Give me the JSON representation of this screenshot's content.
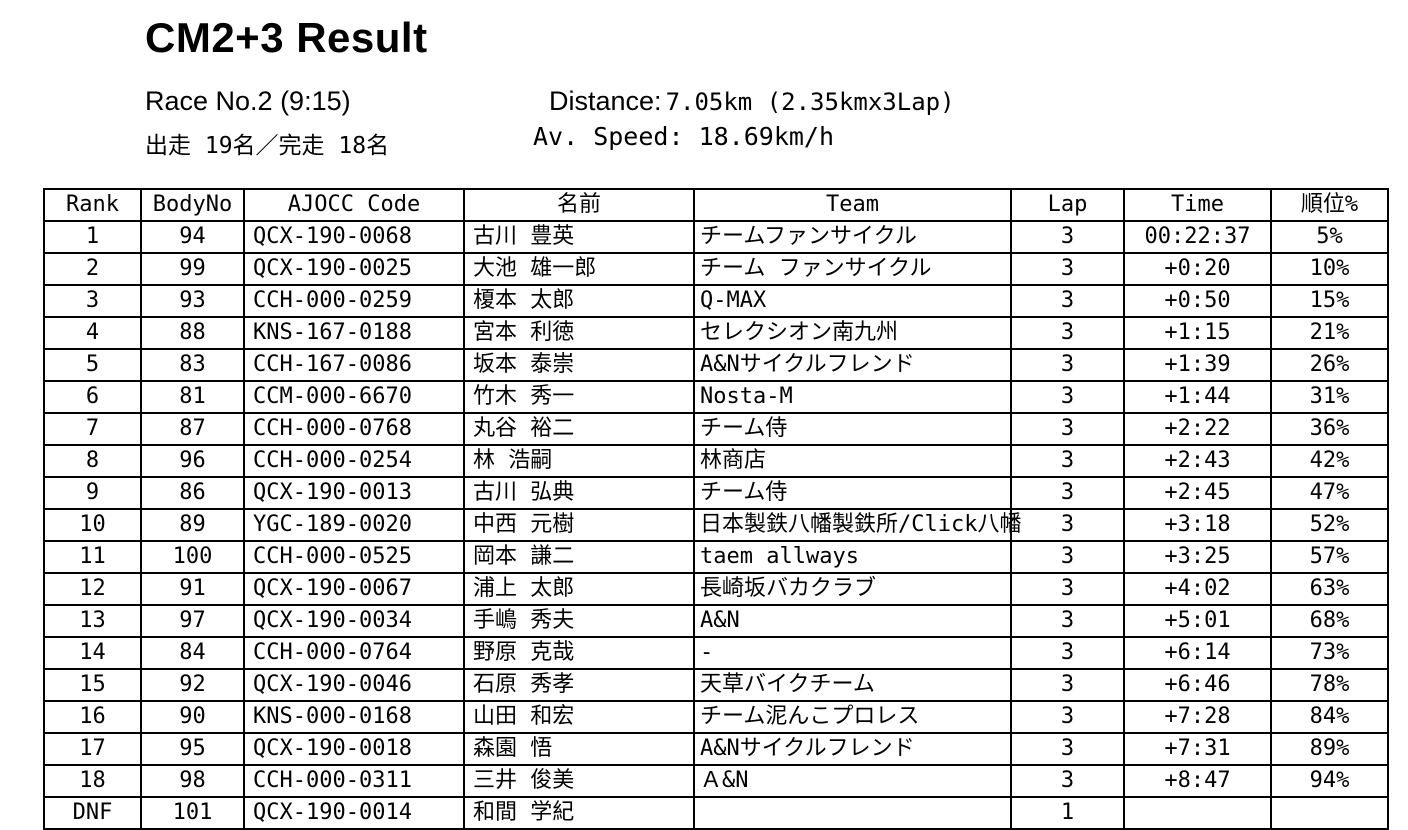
{
  "title": "CM2+3 Result",
  "meta": {
    "race_no": "Race No.2 (9:15)",
    "starters": "出走 19名／完走 18名",
    "distance_label": "Distance:",
    "distance_value": "7.05km (2.35kmx3Lap)",
    "av_speed_label": "Av. Speed:",
    "av_speed_value": "18.69km/h"
  },
  "table": {
    "headers": [
      "Rank",
      "BodyNo",
      "AJOCC Code",
      "名前",
      "Team",
      "Lap",
      "Time",
      "順位%"
    ],
    "rows": [
      {
        "rank": "1",
        "body_no": "94",
        "code": "QCX-190-0068",
        "name": "古川 豊英",
        "team": "チームファンサイクル",
        "lap": "3",
        "time": "00:22:37",
        "pct": "5%"
      },
      {
        "rank": "2",
        "body_no": "99",
        "code": "QCX-190-0025",
        "name": "大池 雄一郎",
        "team": "チーム ファンサイクル",
        "lap": "3",
        "time": "+0:20",
        "pct": "10%"
      },
      {
        "rank": "3",
        "body_no": "93",
        "code": "CCH-000-0259",
        "name": "榎本 太郎",
        "team": "Q-MAX",
        "lap": "3",
        "time": "+0:50",
        "pct": "15%"
      },
      {
        "rank": "4",
        "body_no": "88",
        "code": "KNS-167-0188",
        "name": "宮本 利徳",
        "team": "セレクシオン南九州",
        "lap": "3",
        "time": "+1:15",
        "pct": "21%"
      },
      {
        "rank": "5",
        "body_no": "83",
        "code": "CCH-167-0086",
        "name": "坂本 泰崇",
        "team": "A&Nサイクルフレンド",
        "lap": "3",
        "time": "+1:39",
        "pct": "26%"
      },
      {
        "rank": "6",
        "body_no": "81",
        "code": "CCM-000-6670",
        "name": "竹木 秀一",
        "team": "Nosta-M",
        "lap": "3",
        "time": "+1:44",
        "pct": "31%"
      },
      {
        "rank": "7",
        "body_no": "87",
        "code": "CCH-000-0768",
        "name": "丸谷 裕二",
        "team": "チーム侍",
        "lap": "3",
        "time": "+2:22",
        "pct": "36%"
      },
      {
        "rank": "8",
        "body_no": "96",
        "code": "CCH-000-0254",
        "name": "林 浩嗣",
        "team": "林商店",
        "lap": "3",
        "time": "+2:43",
        "pct": "42%"
      },
      {
        "rank": "9",
        "body_no": "86",
        "code": "QCX-190-0013",
        "name": "古川 弘典",
        "team": "チーム侍",
        "lap": "3",
        "time": "+2:45",
        "pct": "47%"
      },
      {
        "rank": "10",
        "body_no": "89",
        "code": "YGC-189-0020",
        "name": "中西 元樹",
        "team": "日本製鉄八幡製鉄所/Click八幡",
        "lap": "3",
        "time": "+3:18",
        "pct": "52%"
      },
      {
        "rank": "11",
        "body_no": "100",
        "code": "CCH-000-0525",
        "name": "岡本 謙二",
        "team": "taem allways",
        "lap": "3",
        "time": "+3:25",
        "pct": "57%"
      },
      {
        "rank": "12",
        "body_no": "91",
        "code": "QCX-190-0067",
        "name": "浦上 太郎",
        "team": "長崎坂バカクラブ",
        "lap": "3",
        "time": "+4:02",
        "pct": "63%"
      },
      {
        "rank": "13",
        "body_no": "97",
        "code": "QCX-190-0034",
        "name": "手嶋 秀夫",
        "team": "A&N",
        "lap": "3",
        "time": "+5:01",
        "pct": "68%"
      },
      {
        "rank": "14",
        "body_no": "84",
        "code": "CCH-000-0764",
        "name": "野原 克哉",
        "team": "-",
        "lap": "3",
        "time": "+6:14",
        "pct": "73%"
      },
      {
        "rank": "15",
        "body_no": "92",
        "code": "QCX-190-0046",
        "name": "石原 秀孝",
        "team": "天草バイクチーム",
        "lap": "3",
        "time": "+6:46",
        "pct": "78%"
      },
      {
        "rank": "16",
        "body_no": "90",
        "code": "KNS-000-0168",
        "name": "山田 和宏",
        "team": "チーム泥んこプロレス",
        "lap": "3",
        "time": "+7:28",
        "pct": "84%"
      },
      {
        "rank": "17",
        "body_no": "95",
        "code": "QCX-190-0018",
        "name": "森園 悟",
        "team": "A&Nサイクルフレンド",
        "lap": "3",
        "time": "+7:31",
        "pct": "89%"
      },
      {
        "rank": "18",
        "body_no": "98",
        "code": "CCH-000-0311",
        "name": "三井 俊美",
        "team": "Ａ&N",
        "lap": "3",
        "time": "+8:47",
        "pct": "94%"
      },
      {
        "rank": "DNF",
        "body_no": "101",
        "code": "QCX-190-0014",
        "name": "和間 学紀",
        "team": "",
        "lap": "1",
        "time": "",
        "pct": ""
      }
    ]
  }
}
